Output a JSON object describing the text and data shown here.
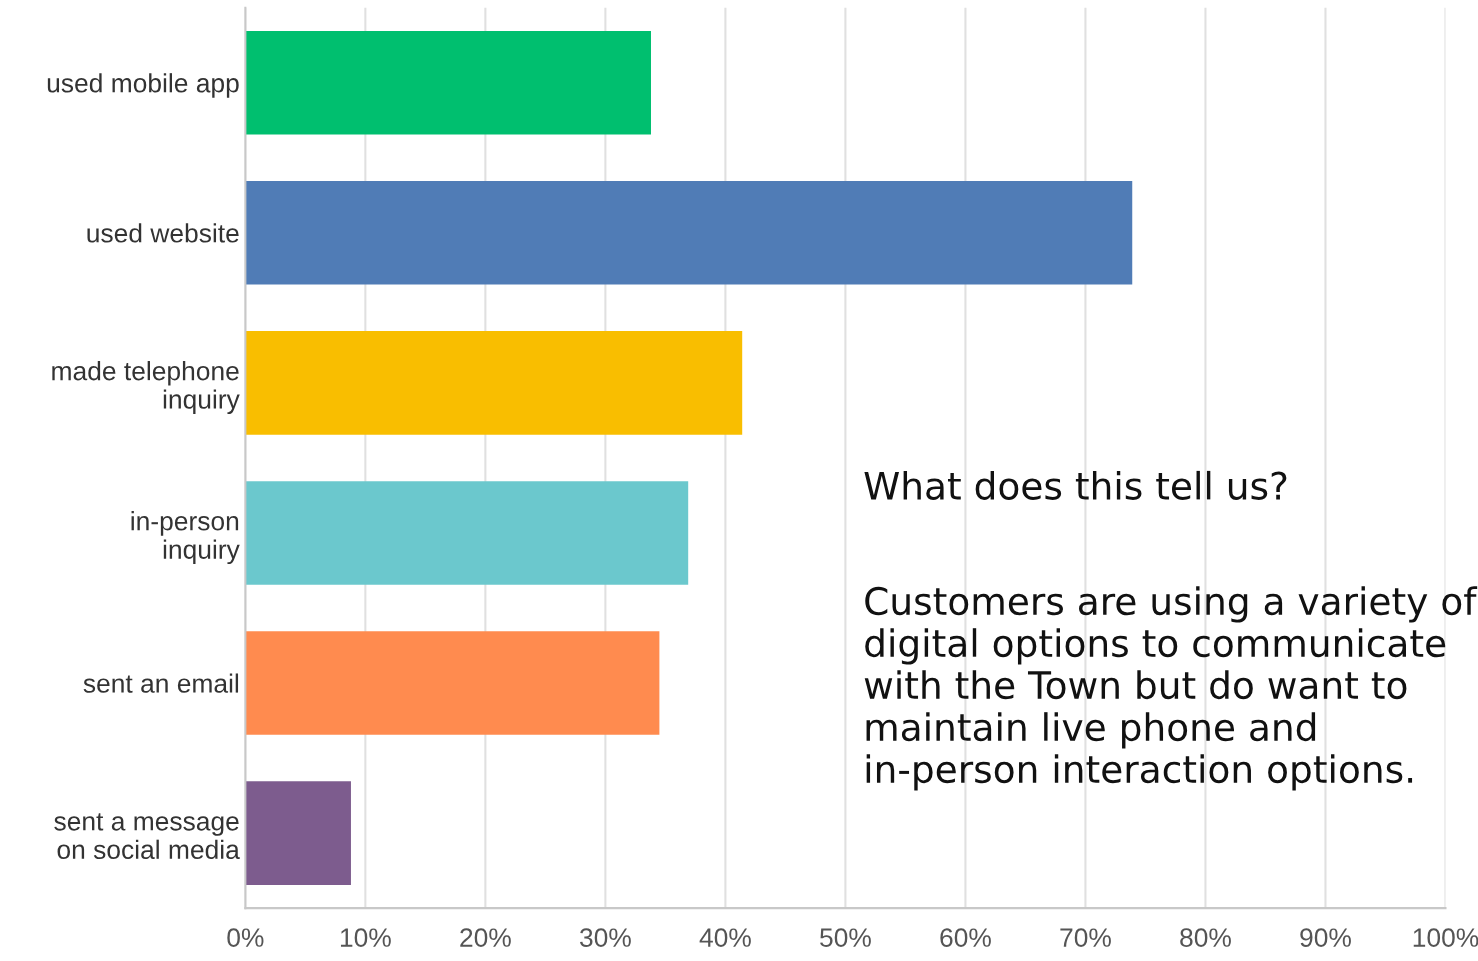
{
  "chart_data": {
    "type": "bar",
    "orientation": "horizontal",
    "categories": [
      "used mobile app",
      "used website",
      "made telephone\ninquiry",
      "in-person\ninquiry",
      "sent an email",
      "sent a message\non social media"
    ],
    "values": [
      33.8,
      73.9,
      41.4,
      36.9,
      34.5,
      8.8
    ],
    "colors": [
      "#00bf6f",
      "#507cb6",
      "#f9be00",
      "#6bc8cd",
      "#ff8b4f",
      "#7d5c8e"
    ],
    "xlim": [
      0,
      100
    ],
    "xticks": [
      {
        "value": 0,
        "label": "0%"
      },
      {
        "value": 10,
        "label": "10%"
      },
      {
        "value": 20,
        "label": "20%"
      },
      {
        "value": 30,
        "label": "30%"
      },
      {
        "value": 40,
        "label": "40%"
      },
      {
        "value": 50,
        "label": "50%"
      },
      {
        "value": 60,
        "label": "60%"
      },
      {
        "value": 70,
        "label": "70%"
      },
      {
        "value": 80,
        "label": "80%"
      },
      {
        "value": 90,
        "label": "90%"
      },
      {
        "value": 100,
        "label": "100%"
      }
    ],
    "grid": "x",
    "annotations": [
      "What does this tell us?",
      "Customers are using a variety of digital options to communicate with the Town but do want to maintain live phone and in-person interaction options."
    ]
  }
}
